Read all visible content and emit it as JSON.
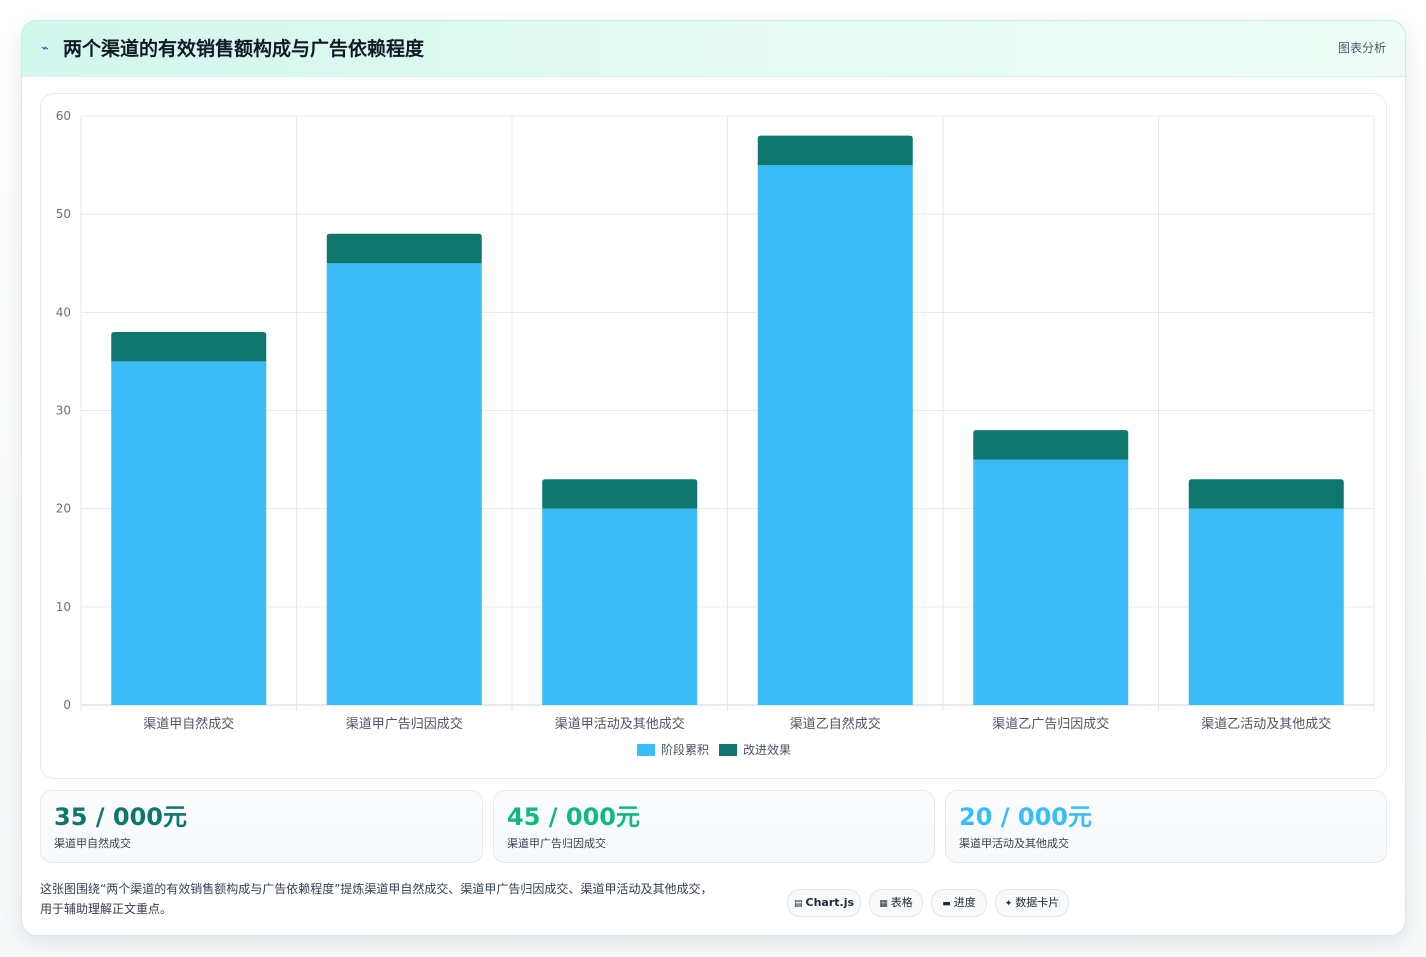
{
  "header": {
    "icon": "chart-line-icon",
    "title": "两个渠道的有效销售额构成与广告依赖程度",
    "tag": "图表分析"
  },
  "chart_data": {
    "type": "bar",
    "stacked": true,
    "categories": [
      "渠道甲自然成交",
      "渠道甲广告归因成交",
      "渠道甲活动及其他成交",
      "渠道乙自然成交",
      "渠道乙广告归因成交",
      "渠道乙活动及其他成交"
    ],
    "series": [
      {
        "name": "阶段累积",
        "color": "#3bbcf7",
        "values": [
          35,
          45,
          20,
          55,
          25,
          20
        ]
      },
      {
        "name": "改进效果",
        "color": "#0f766e",
        "values": [
          3,
          3,
          3,
          3,
          3,
          3
        ]
      }
    ],
    "ylim": [
      0,
      60
    ],
    "yticks": [
      0,
      10,
      20,
      30,
      40,
      50,
      60
    ],
    "grid": true,
    "legend": "bottom"
  },
  "stats": [
    {
      "value": "35 / 000元",
      "label": "渠道甲自然成交",
      "color": "#0f766e"
    },
    {
      "value": "45 / 000元",
      "label": "渠道甲广告归因成交",
      "color": "#10b981"
    },
    {
      "value": "20 / 000元",
      "label": "渠道甲活动及其他成交",
      "color": "#38bdf8"
    }
  ],
  "description": {
    "line1": "这张图围绕“两个渠道的有效销售额构成与广告依赖程度”提炼渠道甲自然成交、渠道甲广告归因成交、渠道甲活动及其他成交，",
    "line2": "用于辅助理解正文重点。"
  },
  "chips": [
    {
      "icon": "▤",
      "label": "Chart.js"
    },
    {
      "icon": "▦",
      "label": "表格"
    },
    {
      "icon": "▬",
      "label": "进度"
    },
    {
      "icon": "✦",
      "label": "数据卡片"
    }
  ]
}
